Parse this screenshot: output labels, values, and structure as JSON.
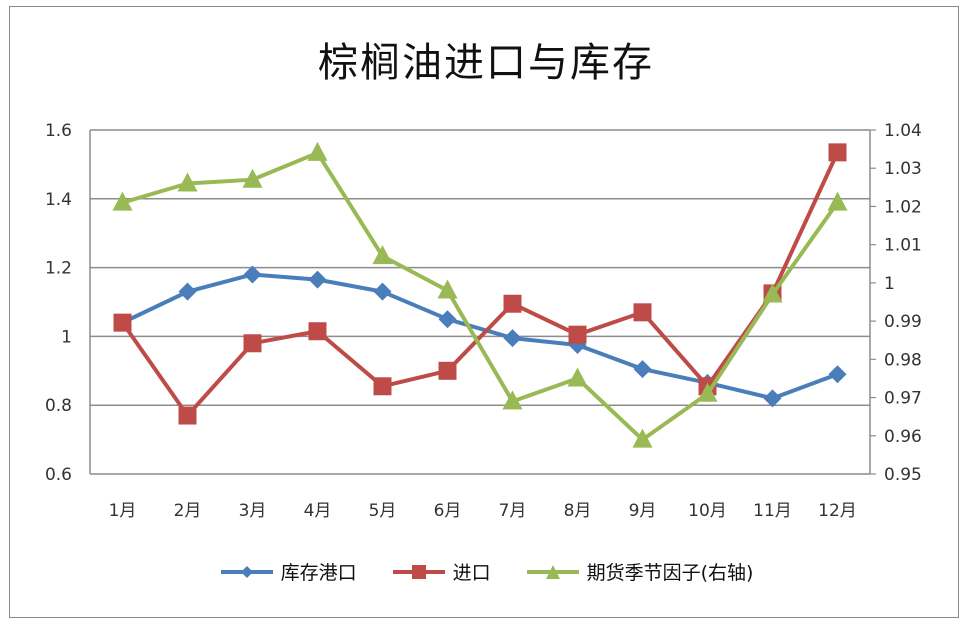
{
  "chart_data": {
    "type": "line",
    "title": "棕榈油进口与库存",
    "categories": [
      "1月",
      "2月",
      "3月",
      "4月",
      "5月",
      "6月",
      "7月",
      "8月",
      "9月",
      "10月",
      "11月",
      "12月"
    ],
    "series": [
      {
        "name": "库存港口",
        "axis": "left",
        "color": "#4a7ebb",
        "marker": "diamond",
        "values": [
          1.04,
          1.13,
          1.18,
          1.165,
          1.13,
          1.05,
          0.995,
          0.975,
          0.905,
          0.865,
          0.82,
          0.89
        ]
      },
      {
        "name": "进口",
        "axis": "left",
        "color": "#be4b48",
        "marker": "square",
        "values": [
          1.04,
          0.77,
          0.98,
          1.015,
          0.855,
          0.9,
          1.095,
          1.005,
          1.07,
          0.855,
          1.125,
          1.535
        ]
      },
      {
        "name": "期货季节因子(右轴)",
        "axis": "right",
        "color": "#98b954",
        "marker": "triangle",
        "values": [
          1.021,
          1.026,
          1.027,
          1.034,
          1.007,
          0.998,
          0.969,
          0.975,
          0.959,
          0.971,
          0.997,
          1.021
        ]
      }
    ],
    "left_axis": {
      "ylim": [
        0.6,
        1.6
      ],
      "ticks": [
        "0.6",
        "0.8",
        "1",
        "1.2",
        "1.4",
        "1.6"
      ]
    },
    "right_axis": {
      "ylim": [
        0.95,
        1.04
      ],
      "ticks": [
        "0.95",
        "0.96",
        "0.97",
        "0.98",
        "0.99",
        "1",
        "1.01",
        "1.02",
        "1.03",
        "1.04"
      ]
    },
    "xlabel": "",
    "ylabel": "",
    "grid": true,
    "legend_position": "bottom"
  },
  "legend": [
    {
      "label": "库存港口"
    },
    {
      "label": "进口"
    },
    {
      "label": "期货季节因子(右轴)"
    }
  ]
}
